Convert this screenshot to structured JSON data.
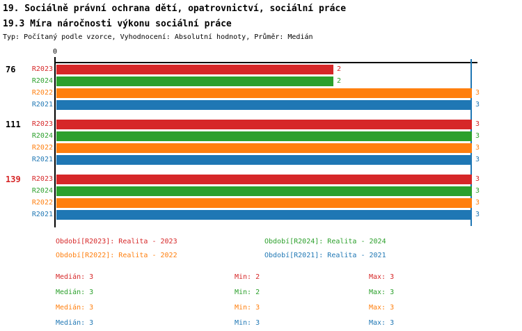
{
  "page": {
    "title": "19. Sociálně právní ochrana dětí, opatrovnictví, sociální práce",
    "subtitle": "19.3 Míra náročnosti výkonu sociální práce",
    "meta": "Typ: Počítaný podle vzorce, Vyhodnocení: Absolutní hodnoty, Průměr: Medián"
  },
  "colors": {
    "R2023": "#d62728",
    "R2024": "#2ca02c",
    "R2022": "#ff7f0e",
    "R2021": "#1f77b4",
    "axis": "#000000",
    "median_line": "#1f77b4"
  },
  "chart_data": {
    "type": "bar",
    "orientation": "horizontal",
    "title": "19.3 Míra náročnosti výkonu sociální práce",
    "xlim": [
      0,
      3
    ],
    "x_zero_label": "0",
    "grid": false,
    "median_line_value": 3,
    "series": [
      "R2023",
      "R2024",
      "R2022",
      "R2021"
    ],
    "groups": [
      {
        "label": "76",
        "label_color": "#000000",
        "values": [
          2,
          2,
          3,
          3
        ]
      },
      {
        "label": "111",
        "label_color": "#000000",
        "values": [
          3,
          3,
          3,
          3
        ]
      },
      {
        "label": "139",
        "label_color": "#d62728",
        "values": [
          3,
          3,
          3,
          3
        ]
      }
    ]
  },
  "legend": {
    "items": [
      {
        "series": "R2023",
        "text": "Období[R2023]: Realita - 2023"
      },
      {
        "series": "R2024",
        "text": "Období[R2024]: Realita - 2024"
      },
      {
        "series": "R2022",
        "text": "Období[R2022]: Realita - 2022"
      },
      {
        "series": "R2021",
        "text": "Období[R2021]: Realita - 2021"
      }
    ]
  },
  "stats": {
    "median_label": "Medián",
    "min_label": "Min",
    "max_label": "Max",
    "rows": [
      {
        "series": "R2023",
        "median": 3,
        "min": 2,
        "max": 3
      },
      {
        "series": "R2024",
        "median": 3,
        "min": 2,
        "max": 3
      },
      {
        "series": "R2022",
        "median": 3,
        "min": 3,
        "max": 3
      },
      {
        "series": "R2021",
        "median": 3,
        "min": 3,
        "max": 3
      }
    ]
  }
}
